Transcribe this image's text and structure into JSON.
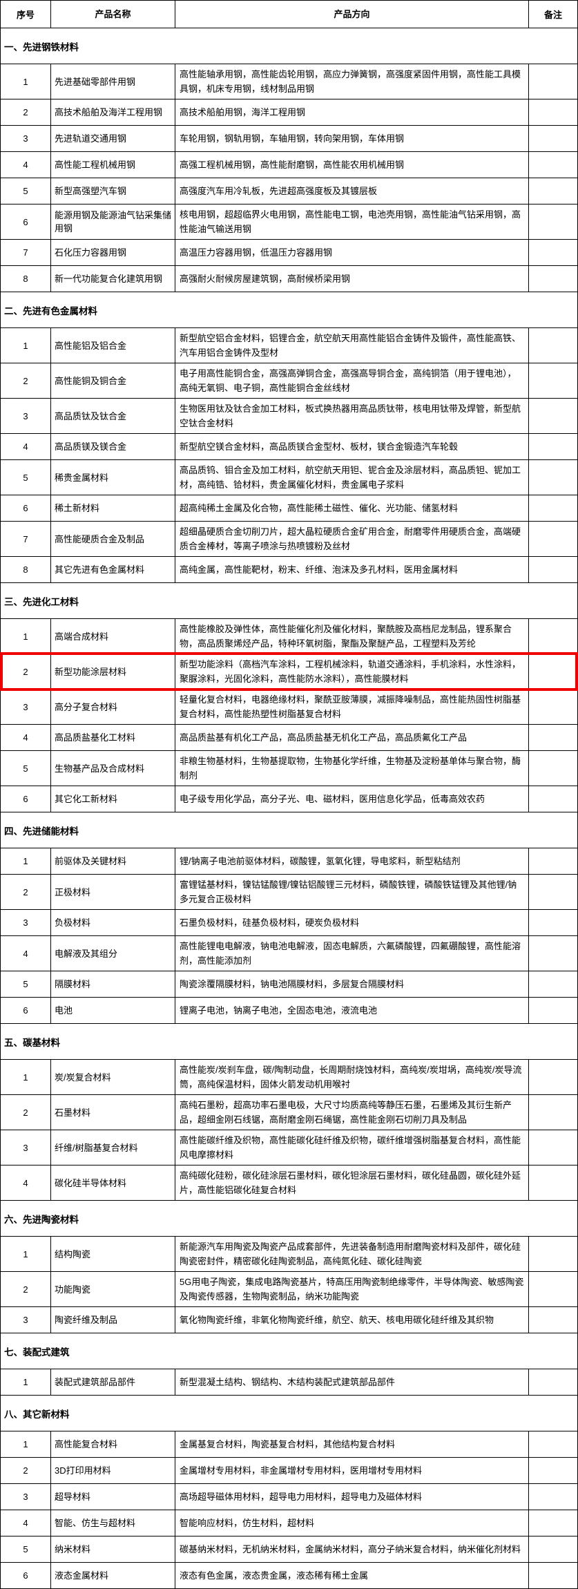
{
  "table": {
    "columns": [
      "序号",
      "产品名称",
      "产品方向",
      "备注"
    ],
    "highlight_color": "#ee0000",
    "sections": [
      {
        "title": "一、先进钢铁材料",
        "rows": [
          {
            "num": "1",
            "name": "先进基础零部件用钢",
            "direction": "高性能轴承用钢，高性能齿轮用钢，高应力弹簧钢，高强度紧固件用钢，高性能工具模具钢，机床专用钢，线材制品用钢",
            "remark": ""
          },
          {
            "num": "2",
            "name": "高技术船舶及海洋工程用钢",
            "direction": "高技术船舶用钢，海洋工程用钢",
            "remark": ""
          },
          {
            "num": "3",
            "name": "先进轨道交通用钢",
            "direction": "车轮用钢，钢轨用钢，车轴用钢，转向架用钢，车体用钢",
            "remark": ""
          },
          {
            "num": "4",
            "name": "高性能工程机械用钢",
            "direction": "高强工程机械用钢，高性能耐磨钢，高性能农用机械用钢",
            "remark": ""
          },
          {
            "num": "5",
            "name": "新型高强塑汽车钢",
            "direction": "高强度汽车用冷轧板，先进超高强度板及其镀层板",
            "remark": ""
          },
          {
            "num": "6",
            "name": "能源用钢及能源油气钻采集储用钢",
            "direction": "核电用钢，超超临界火电用钢，高性能电工钢，电池壳用钢，高性能油气钻采用钢，高性能油气输送用钢",
            "remark": ""
          },
          {
            "num": "7",
            "name": "石化压力容器用钢",
            "direction": "高温压力容器用钢，低温压力容器用钢",
            "remark": ""
          },
          {
            "num": "8",
            "name": "新一代功能复合化建筑用钢",
            "direction": "高强耐火耐候房屋建筑钢，高耐候桥梁用钢",
            "remark": ""
          }
        ]
      },
      {
        "title": "二、先进有色金属材料",
        "rows": [
          {
            "num": "1",
            "name": "高性能铝及铝合金",
            "direction": "新型航空铝合金材料，铝锂合金，航空航天用高性能铝合金铸件及锻件，高性能高铁、汽车用铝合金铸件及型材",
            "remark": ""
          },
          {
            "num": "2",
            "name": "高性能铜及铜合金",
            "direction": "电子用高性能铜合金，高强高弹铜合金，高强高导铜合金，高纯铜箔（用于锂电池），高纯无氧铜、电子铜，高性能铜合金丝线材",
            "remark": ""
          },
          {
            "num": "3",
            "name": "高品质钛及钛合金",
            "direction": "生物医用钛及钛合金加工材料，板式换热器用高品质钛带，核电用钛带及焊管，新型航空钛合金材料",
            "remark": ""
          },
          {
            "num": "4",
            "name": "高品质镁及镁合金",
            "direction": "新型航空镁合金材料，高品质镁合金型材、板材，镁合金锻造汽车轮毂",
            "remark": ""
          },
          {
            "num": "5",
            "name": "稀贵金属材料",
            "direction": "高品质钨、钼合金及加工材料，航空航天用钽、铌合金及涂层材料，高品质钽、铌加工材，高纯锆、铪材料，贵金属催化材料，贵金属电子浆料",
            "remark": ""
          },
          {
            "num": "6",
            "name": "稀土新材料",
            "direction": "超高纯稀土金属及化合物，高性能稀土磁性、催化、光功能、储氢材料",
            "remark": ""
          },
          {
            "num": "7",
            "name": "高性能硬质合金及制品",
            "direction": "超细晶硬质合金切削刀片，超大晶粒硬质合金矿用合金，耐磨零件用硬质合金，高端硬质合金棒材，等离子喷涂与热喷镀粉及丝材",
            "remark": ""
          },
          {
            "num": "8",
            "name": "其它先进有色金属材料",
            "direction": "高纯金属，高性能靶材，粉末、纤维、泡沫及多孔材料，医用金属材料",
            "remark": ""
          }
        ]
      },
      {
        "title": "三、先进化工材料",
        "rows": [
          {
            "num": "1",
            "name": "高端合成材料",
            "direction": "高性能橡胶及弹性体，高性能催化剂及催化材料，聚酰胺及高档尼龙制品，锂系聚合物，高品质聚烯烃产品，特种环氧树脂，聚酯及聚醚产品，工程塑料及芳纶",
            "remark": ""
          },
          {
            "num": "2",
            "name": "新型功能涂层材料",
            "direction": "新型功能涂料（高档汽车涂料，工程机械涂料，轨道交通涂料，手机涂料，水性涂料，聚脲涂料，光固化涂料，高性能防水涂料），高性能膜材料",
            "remark": "",
            "highlighted": true
          },
          {
            "num": "3",
            "name": "高分子复合材料",
            "direction": "轻量化复合材料，电器绝缘材料，聚酰亚胺薄膜，减振降噪制品，高性能热固性树脂基复合材料，高性能热塑性树脂基复合材料",
            "remark": ""
          },
          {
            "num": "4",
            "name": "高品质盐基化工材料",
            "direction": "高品质盐基有机化工产品，高品质盐基无机化工产品，高品质氟化工产品",
            "remark": ""
          },
          {
            "num": "5",
            "name": "生物基产品及合成材料",
            "direction": "非粮生物基材料，生物基提取物，生物基化学纤维，生物基及淀粉基单体与聚合物，酶制剂",
            "remark": ""
          },
          {
            "num": "6",
            "name": "其它化工新材料",
            "direction": "电子级专用化学品，高分子光、电、磁材料，医用信息化学品，低毒高效农药",
            "remark": ""
          }
        ]
      },
      {
        "title": "四、先进储能材料",
        "rows": [
          {
            "num": "1",
            "name": "前驱体及关键材料",
            "direction": "锂/钠离子电池前驱体材料，碳酸锂，氢氧化锂，导电浆料，新型粘结剂",
            "remark": ""
          },
          {
            "num": "2",
            "name": "正极材料",
            "direction": "富锂锰基材料，镍钴锰酸锂/镍钴铝酸锂三元材料，磷酸铁锂，磷酸铁锰锂及其他锂/钠多元复合正极材料",
            "remark": ""
          },
          {
            "num": "3",
            "name": "负极材料",
            "direction": "石墨负极材料，硅基负极材料，硬炭负极材料",
            "remark": ""
          },
          {
            "num": "4",
            "name": "电解液及其组分",
            "direction": "高性能锂电电解液，钠电池电解液，固态电解质，六氟磷酸锂，四氟硼酸锂，高性能溶剂，高性能添加剂",
            "remark": ""
          },
          {
            "num": "5",
            "name": "隔膜材料",
            "direction": "陶瓷涂覆隔膜材料，钠电池隔膜材料，多层复合隔膜材料",
            "remark": ""
          },
          {
            "num": "6",
            "name": "电池",
            "direction": "锂离子电池，钠离子电池，全固态电池，液流电池",
            "remark": ""
          }
        ]
      },
      {
        "title": "五、碳基材料",
        "rows": [
          {
            "num": "1",
            "name": "炭/炭复合材料",
            "direction": "高性能炭/炭刹车盘，碳/陶制动盘，长周期耐烧蚀材料，高纯炭/炭坩埚，高纯炭/炭导流筒，高纯保温材料，固体火箭发动机用喉衬",
            "remark": ""
          },
          {
            "num": "2",
            "name": "石墨材料",
            "direction": "高纯石墨粉，超高功率石墨电极，大尺寸均质高纯等静压石墨，石墨烯及其衍生新产品，超细金刚石线锯，高耐磨金刚石绳锯，高性能金刚石切削刀具及制品",
            "remark": ""
          },
          {
            "num": "3",
            "name": "纤维/树脂基复合材料",
            "direction": "高性能碳纤维及织物，高性能碳化硅纤维及织物，碳纤维增强树脂基复合材料，高性能风电摩擦材料",
            "remark": ""
          },
          {
            "num": "4",
            "name": "碳化硅半导体材料",
            "direction": "高纯碳化硅粉，碳化硅涂层石墨材料，碳化钽涂层石墨材料，碳化硅晶圆，碳化硅外延片，高性能铝碳化硅复合材料",
            "remark": ""
          }
        ]
      },
      {
        "title": "六、先进陶瓷材料",
        "rows": [
          {
            "num": "1",
            "name": "结构陶瓷",
            "direction": "新能源汽车用陶瓷及陶瓷产品成套部件，先进装备制造用耐磨陶瓷材料及部件，碳化硅陶瓷密封件，精密碳化硅陶瓷制品，高纯氮化硅、碳化硅陶瓷",
            "remark": ""
          },
          {
            "num": "2",
            "name": "功能陶瓷",
            "direction": "5G用电子陶瓷，集成电路陶瓷基片，特高压用陶瓷制绝缘零件，半导体陶瓷、敏感陶瓷及陶瓷传感器，生物陶瓷制品，纳米功能陶瓷",
            "remark": ""
          },
          {
            "num": "3",
            "name": "陶瓷纤维及制品",
            "direction": "氧化物陶瓷纤维，非氧化物陶瓷纤维，航空、航天、核电用碳化硅纤维及其织物",
            "remark": ""
          }
        ]
      },
      {
        "title": "七、装配式建筑",
        "rows": [
          {
            "num": "1",
            "name": "装配式建筑部品部件",
            "direction": "新型混凝土结构、钢结构、木结构装配式建筑部品部件",
            "remark": ""
          }
        ]
      },
      {
        "title": "八、其它新材料",
        "rows": [
          {
            "num": "1",
            "name": "高性能复合材料",
            "direction": "金属基复合材料，陶瓷基复合材料，其他结构复合材料",
            "remark": ""
          },
          {
            "num": "2",
            "name": "3D打印用材料",
            "direction": "金属增材专用材料，非金属增材专用材料，医用增材专用材料",
            "remark": ""
          },
          {
            "num": "3",
            "name": "超导材料",
            "direction": "高场超导磁体用材料，超导电力用材料，超导电力及磁体材料",
            "remark": ""
          },
          {
            "num": "4",
            "name": "智能、仿生与超材料",
            "direction": "智能响应材料，仿生材料，超材料",
            "remark": ""
          },
          {
            "num": "5",
            "name": "纳米材料",
            "direction": "碳基纳米材料，无机纳米材料，金属纳米材料，高分子纳米复合材料，纳米催化剂材料",
            "remark": ""
          },
          {
            "num": "6",
            "name": "液态金属材料",
            "direction": "液态有色金属，液态贵金属，液态稀有稀土金属",
            "remark": ""
          }
        ]
      }
    ]
  }
}
